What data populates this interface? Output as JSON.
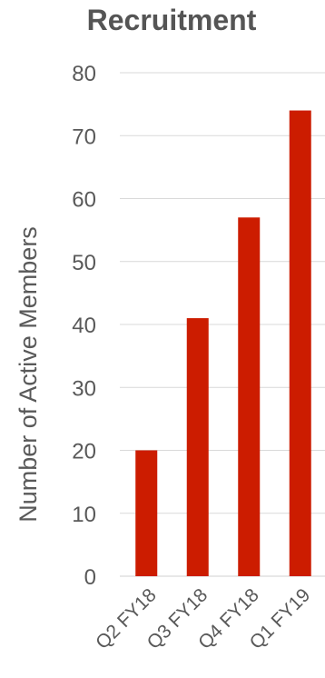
{
  "chart_data": {
    "type": "bar",
    "title": "Recruitment",
    "xlabel": "",
    "ylabel": "Number of Active Members",
    "categories": [
      "Q2 FY18",
      "Q3 FY18",
      "Q4 FY18",
      "Q1 FY19"
    ],
    "values": [
      20,
      41,
      57,
      74
    ],
    "ylim": [
      0,
      80
    ],
    "yticks": [
      0,
      10,
      20,
      30,
      40,
      50,
      60,
      70,
      80
    ],
    "grid": true,
    "legend": "none",
    "bar_color": "#cc1c00",
    "grid_color": "#d9d9d9",
    "text_color": "#595959"
  }
}
